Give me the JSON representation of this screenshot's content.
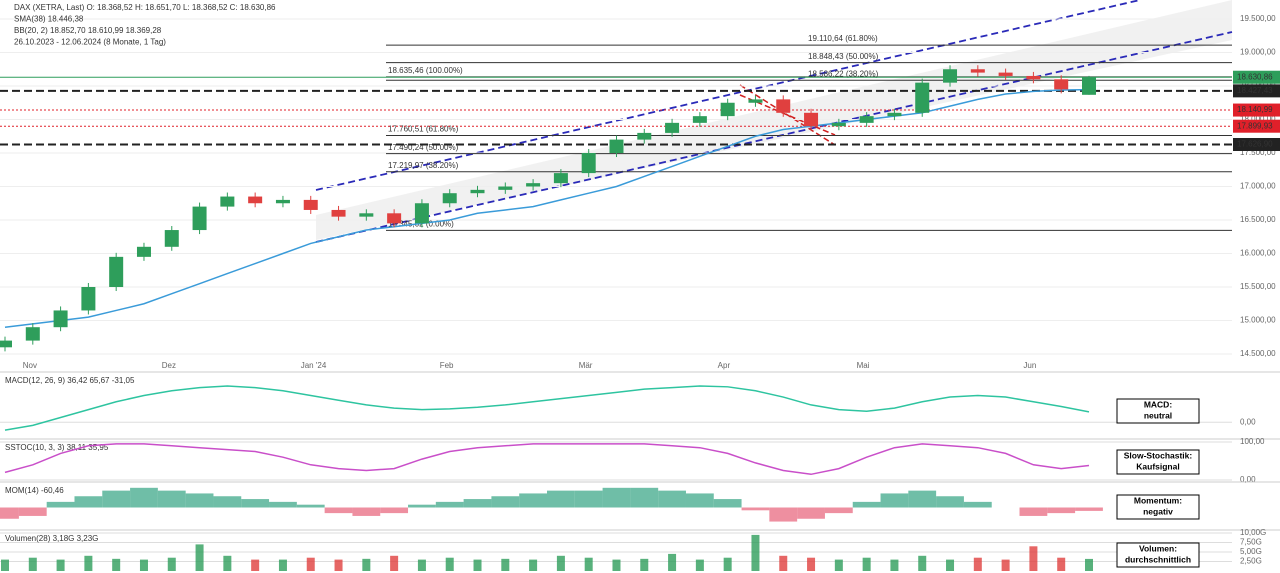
{
  "chart_data": [
    {
      "type": "candlestick",
      "header": [
        "DAX (XETRA, Last)  O: 18.368,52  H: 18.651,70  L: 18.368,52  C: 18.630,86",
        "SMA(38)  18.446,38",
        "BB(20, 2)  18.852,70  18.610,99  18.369,28",
        "26.10.2023 - 12.06.2024 (8 Monate, 1 Tag)"
      ],
      "categories": [
        null,
        "Nov",
        null,
        null,
        null,
        null,
        "Dez",
        null,
        null,
        null,
        null,
        "Jan '24",
        null,
        null,
        null,
        null,
        "Feb",
        null,
        null,
        null,
        null,
        "Mär",
        null,
        null,
        null,
        null,
        "Apr",
        null,
        null,
        null,
        null,
        "Mai",
        null,
        null,
        null,
        null,
        null,
        "Jun",
        null,
        null
      ],
      "open": [
        14600,
        14700,
        14900,
        15150,
        15500,
        15950,
        16100,
        16350,
        16700,
        16850,
        16750,
        16800,
        16650,
        16550,
        16600,
        16450,
        16750,
        16900,
        16950,
        17000,
        17050,
        17200,
        17500,
        17700,
        17800,
        17950,
        18050,
        18250,
        18300,
        18100,
        17900,
        17950,
        18050,
        18100,
        18550,
        18750,
        18700,
        18650,
        18600,
        18368.52
      ],
      "high": [
        14760,
        14960,
        15210,
        15560,
        16010,
        16160,
        16410,
        16760,
        16910,
        16910,
        16860,
        16860,
        16710,
        16660,
        16660,
        16810,
        16960,
        17010,
        17060,
        17110,
        17260,
        17560,
        17760,
        17860,
        18010,
        18110,
        18310,
        18360,
        18360,
        18160,
        18010,
        18110,
        18160,
        18610,
        18810,
        18810,
        18760,
        18710,
        18660,
        18651.7
      ],
      "low": [
        14540,
        14640,
        14840,
        15090,
        15440,
        15890,
        16040,
        16290,
        16640,
        16690,
        16690,
        16590,
        16490,
        16490,
        16390,
        16390,
        16690,
        16840,
        16890,
        16940,
        16990,
        17140,
        17440,
        17640,
        17740,
        17890,
        17990,
        18190,
        18040,
        17840,
        17840,
        17890,
        17990,
        18040,
        18490,
        18640,
        18590,
        18540,
        18390,
        18368.52
      ],
      "close": [
        14700,
        14900,
        15150,
        15500,
        15950,
        16100,
        16350,
        16700,
        16850,
        16750,
        16800,
        16650,
        16550,
        16600,
        16450,
        16750,
        16900,
        16950,
        17000,
        17050,
        17200,
        17500,
        17700,
        17800,
        17950,
        18050,
        18250,
        18300,
        18100,
        17900,
        17950,
        18050,
        18100,
        18550,
        18750,
        18700,
        18650,
        18600,
        18450,
        18630.86
      ],
      "up_color": "#2e9e5b",
      "down_color": "#e0403f",
      "sma": [
        14900,
        14950,
        15000,
        15050,
        15150,
        15250,
        15400,
        15550,
        15700,
        15850,
        16000,
        16150,
        16250,
        16350,
        16400,
        16450,
        16500,
        16600,
        16650,
        16700,
        16800,
        16900,
        17000,
        17150,
        17300,
        17450,
        17600,
        17750,
        17850,
        17900,
        17950,
        18000,
        18050,
        18100,
        18200,
        18300,
        18380,
        18420,
        18440,
        18446.38
      ],
      "sma_color": "#3a9bd9",
      "ylim": [
        14500,
        19500
      ],
      "yticks": [
        {
          "value": 19500,
          "label": "19.500,00"
        },
        {
          "value": 19000,
          "label": "19.000,00"
        },
        {
          "value": 18500,
          "label": "18.500,00"
        },
        {
          "value": 18000,
          "label": "18.000,00"
        },
        {
          "value": 17500,
          "label": "17.500,00"
        },
        {
          "value": 17000,
          "label": "17.000,00"
        },
        {
          "value": 16500,
          "label": "16.500,00"
        },
        {
          "value": 16000,
          "label": "16.000,00"
        },
        {
          "value": 15500,
          "label": "15.500,00"
        },
        {
          "value": 15000,
          "label": "15.000,00"
        },
        {
          "value": 14500,
          "label": "14.500,00"
        }
      ],
      "levels": [
        {
          "value": 18630.86,
          "label": "18.630,86",
          "color": "#2e9e5b",
          "style": "solid"
        },
        {
          "value": 18427.43,
          "label": "18.427,43",
          "color": "#222222",
          "style": "dashed"
        },
        {
          "value": 18140.99,
          "label": "18.140,99",
          "color": "#e0202a",
          "style": "dotted"
        },
        {
          "value": 17899.93,
          "label": "17.899,93",
          "color": "#e0202a",
          "style": "dotted"
        },
        {
          "value": 17626.9,
          "label": "17.626,90",
          "color": "#222222",
          "style": "dashed"
        }
      ],
      "fib_upper": [
        {
          "value": 19110.64,
          "label": "19.110,64 (61.80%)"
        },
        {
          "value": 18848.43,
          "label": "18.848,43 (50.00%)"
        },
        {
          "value": 18586.22,
          "label": "18.586,22 (38.20%)"
        }
      ],
      "fib_lower": [
        {
          "value": 18635.46,
          "label": "18.635,46 (100.00%)"
        },
        {
          "value": 17760.51,
          "label": "17.760,51 (61.80%)"
        },
        {
          "value": 17490.24,
          "label": "17.490,24 (50.00%)"
        },
        {
          "value": 17219.97,
          "label": "17.219,97 (38.20%)"
        },
        {
          "value": 16345.02,
          "label": "16.345,02 (0.00%)"
        }
      ]
    },
    {
      "type": "line",
      "title": "MACD(12, 26, 9)  36,42  65,67  -31,05",
      "color": "#2ec4a0",
      "values": [
        -50,
        -20,
        30,
        80,
        130,
        170,
        200,
        220,
        230,
        220,
        200,
        170,
        140,
        110,
        90,
        80,
        85,
        95,
        110,
        130,
        150,
        170,
        190,
        210,
        220,
        230,
        225,
        200,
        160,
        110,
        80,
        70,
        90,
        130,
        160,
        170,
        160,
        130,
        100,
        65.67
      ],
      "ylim": [
        -100,
        300
      ],
      "yticks": [
        {
          "value": 0,
          "label": "0,00"
        }
      ],
      "signal_title": "MACD:",
      "signal": "neutral"
    },
    {
      "type": "line",
      "title": "SSTOC(10, 3, 3)  38,11  35,95",
      "color": "#c94fc9",
      "values": [
        20,
        40,
        70,
        90,
        95,
        95,
        90,
        85,
        80,
        75,
        60,
        40,
        30,
        25,
        30,
        55,
        75,
        85,
        90,
        95,
        95,
        95,
        95,
        95,
        90,
        85,
        70,
        45,
        25,
        15,
        30,
        60,
        85,
        95,
        90,
        85,
        70,
        40,
        30,
        38.11
      ],
      "ylim": [
        0,
        100
      ],
      "yticks": [
        {
          "value": 100,
          "label": "100,00"
        },
        {
          "value": 0,
          "label": "0,00"
        }
      ],
      "signal_title": "Slow-Stochastik:",
      "signal": "Kaufsignal"
    },
    {
      "type": "area",
      "title": "MOM(14)  -60,46",
      "color": "#3fa88a",
      "negative_color": "#e86a80",
      "values": [
        -200,
        -150,
        100,
        200,
        300,
        350,
        300,
        250,
        200,
        150,
        100,
        50,
        -100,
        -150,
        -100,
        50,
        100,
        150,
        200,
        250,
        300,
        300,
        350,
        350,
        300,
        250,
        150,
        -50,
        -250,
        -200,
        -100,
        100,
        250,
        300,
        200,
        100,
        0,
        -150,
        -100,
        -60.46
      ],
      "ylim": [
        -400,
        400
      ],
      "signal_title": "Momentum:",
      "signal": "negativ"
    },
    {
      "type": "bar",
      "title": "Volumen(28)  3,18G  3,23G",
      "values": [
        3,
        3.5,
        3,
        4,
        3.2,
        3,
        3.5,
        7,
        4,
        3,
        3,
        3.5,
        3,
        3.2,
        4,
        3,
        3.5,
        3,
        3.2,
        3,
        4,
        3.5,
        3,
        3.2,
        4.5,
        3,
        3.5,
        9.5,
        4,
        3.5,
        3,
        3.5,
        3,
        4,
        3,
        3.5,
        3,
        6.5,
        3.5,
        3.18
      ],
      "ylim": [
        0,
        10
      ],
      "yticks": [
        {
          "value": 10,
          "label": "10,00G"
        },
        {
          "value": 7.5,
          "label": "7,50G"
        },
        {
          "value": 5,
          "label": "5,00G"
        },
        {
          "value": 2.5,
          "label": "2,50G"
        }
      ],
      "signal_title": "Volumen:",
      "signal": "durchschnittlich"
    }
  ]
}
